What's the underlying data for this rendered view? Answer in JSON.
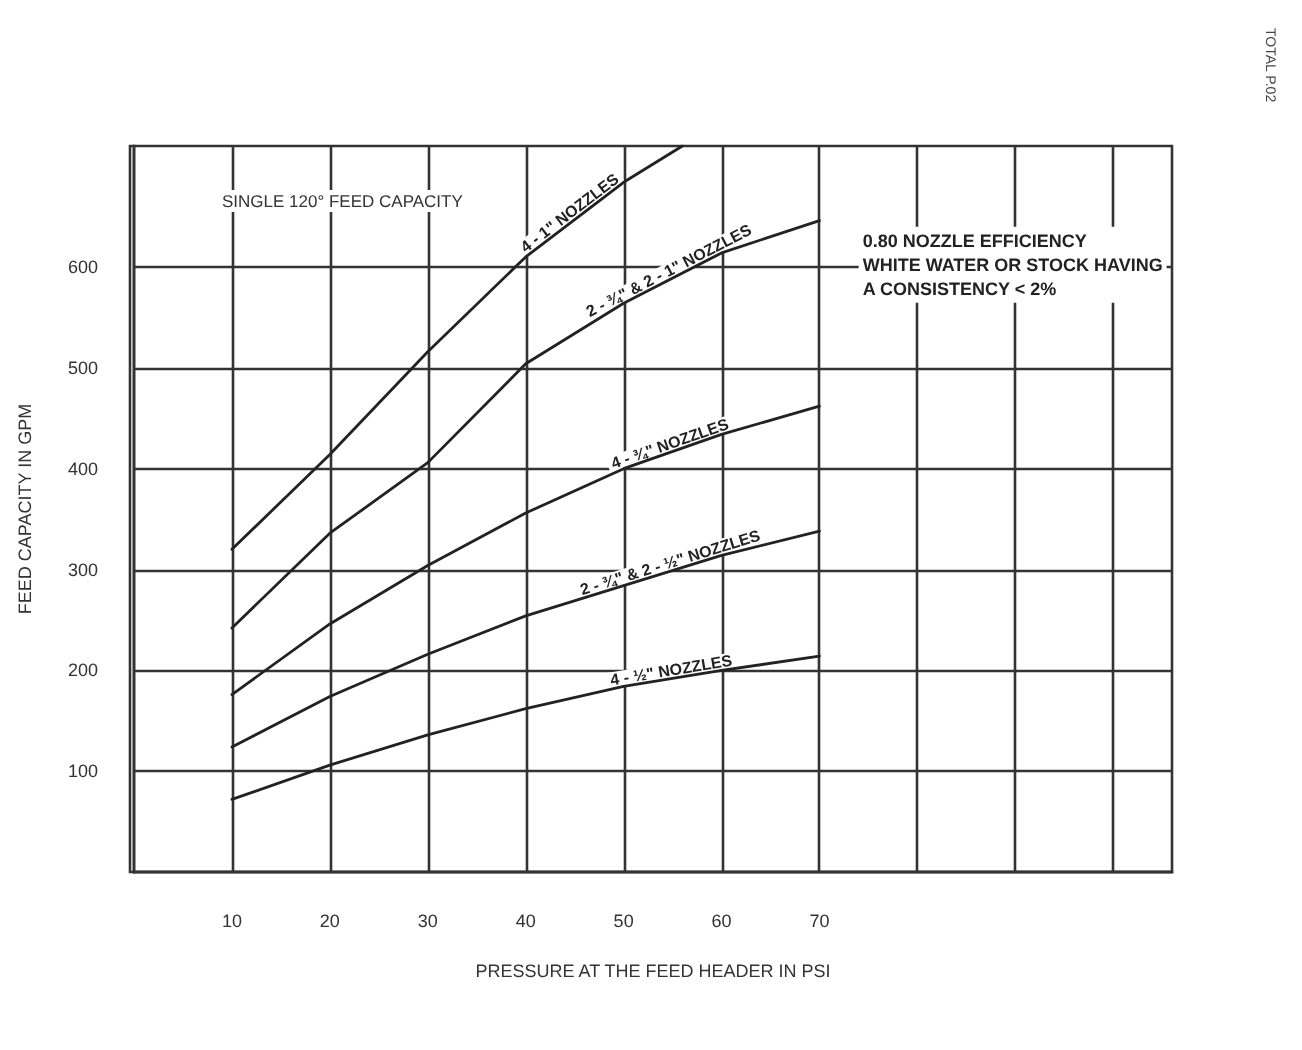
{
  "chart_data": {
    "type": "line",
    "title": "SINGLE 120° FEED CAPACITY",
    "xlabel": "PRESSURE AT THE FEED HEADER IN PSI",
    "ylabel": "FEED CAPACITY IN GPM",
    "annotations": [
      "0.80 NOZZLE EFFICIENCY\nWHITE WATER OR STOCK HAVING\nA CONSISTENCY < 2%",
      "TOTAL P.02"
    ],
    "xlim": [
      0,
      106
    ],
    "ylim": [
      0,
      720
    ],
    "xticks": [
      10,
      20,
      30,
      40,
      50,
      60,
      70,
      {
        "value": 80,
        "label": null
      },
      {
        "value": 90,
        "label": null
      },
      {
        "value": 100,
        "label": null
      }
    ],
    "yticks": [
      100,
      200,
      300,
      400,
      500,
      600
    ],
    "grid": true,
    "legend": false,
    "series": [
      {
        "name": "4 - 1\" NOZZLES",
        "color": "#222222",
        "x": [
          10,
          20,
          30,
          40,
          50,
          56
        ],
        "values": [
          320,
          414,
          516,
          610,
          684,
          720
        ]
      },
      {
        "name": "2 - ¾\" & 2 - 1\" NOZZLES",
        "color": "#222222",
        "x": [
          10,
          20,
          30,
          40,
          50,
          60,
          70
        ],
        "values": [
          242,
          336,
          406,
          504,
          564,
          614,
          646
        ]
      },
      {
        "name": "4 - ¾\" NOZZLES",
        "color": "#222222",
        "x": [
          10,
          20,
          30,
          40,
          50,
          60,
          70
        ],
        "values": [
          176,
          246,
          304,
          356,
          400,
          434,
          462
        ]
      },
      {
        "name": "2 - ¾\" & 2 - ½\" NOZZLES",
        "color": "#222222",
        "x": [
          10,
          20,
          30,
          40,
          50,
          60,
          70
        ],
        "values": [
          124,
          174,
          216,
          254,
          284,
          314,
          338
        ]
      },
      {
        "name": "4 - ½\" NOZZLES",
        "color": "#222222",
        "x": [
          10,
          20,
          30,
          40,
          50,
          60,
          70
        ],
        "values": [
          72,
          106,
          136,
          162,
          184,
          200,
          214
        ]
      }
    ]
  }
}
